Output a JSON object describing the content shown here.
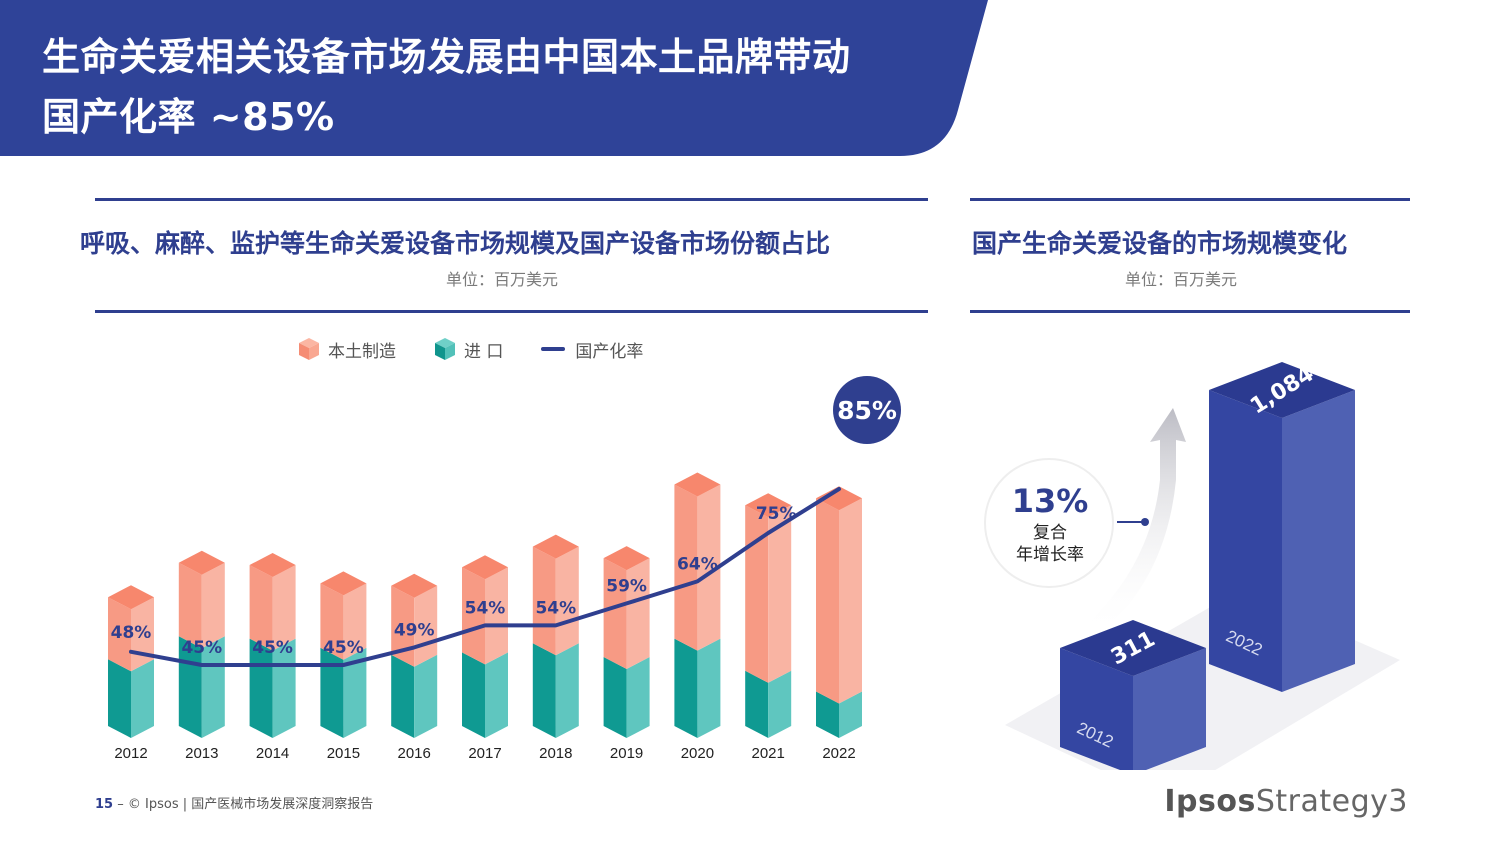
{
  "header": {
    "title_line1": "生命关爱相关设备市场发展由中国本土品牌带动",
    "title_line2": "国产化率 ~85%"
  },
  "left_section": {
    "title": "呼吸、麻醉、监护等生命关爱设备市场规模及国产设备市场份额占比",
    "unit": "单位：百万美元"
  },
  "right_section": {
    "title": "国产生命关爱设备的市场规模变化",
    "unit": "单位：百万美元"
  },
  "footer": {
    "page": "15",
    "text": "© Ipsos | 国产医械市场发展深度洞察报告"
  },
  "logo": {
    "bold": "Ipsos",
    "light": "Strategy3"
  },
  "colors": {
    "navy": "#2f3f8f",
    "local_manufacturing": "#f7917a",
    "import": "#1aa39a",
    "rate_line": "#2f3f8f",
    "bar_3d": "#3547a0"
  },
  "chart_data": [
    {
      "type": "bar",
      "stacked": true,
      "secondary_type": "line",
      "title": "呼吸、麻醉、监护等生命关爱设备市场规模及国产设备市场份额占比",
      "unit": "单位：百万美元",
      "legend": {
        "position": "top",
        "items": [
          "本土制造",
          "进 口",
          "国产化率"
        ]
      },
      "categories": [
        "2012",
        "2013",
        "2014",
        "2015",
        "2016",
        "2017",
        "2018",
        "2019",
        "2020",
        "2021",
        "2022"
      ],
      "series": [
        {
          "name": "本土制造",
          "values": [
            270,
            320,
            320,
            280,
            300,
            370,
            420,
            430,
            670,
            720,
            840
          ]
        },
        {
          "name": "进 口",
          "values": [
            290,
            390,
            380,
            340,
            310,
            320,
            360,
            300,
            380,
            240,
            150
          ]
        }
      ],
      "line_series": {
        "name": "国产化率",
        "values": [
          48,
          45,
          45,
          45,
          49,
          54,
          54,
          59,
          64,
          75,
          85
        ],
        "labels": [
          "48%",
          "45%",
          "45%",
          "45%",
          "49%",
          "54%",
          "54%",
          "59%",
          "64%",
          "75%",
          "85%"
        ]
      },
      "grid": false
    },
    {
      "type": "bar",
      "title": "国产生命关爱设备的市场规模变化",
      "unit": "单位：百万美元",
      "categories": [
        "2012",
        "2022"
      ],
      "values": [
        311,
        1084
      ],
      "value_labels": [
        "311",
        "1,084"
      ],
      "annotation": {
        "value": "13%",
        "label_line1": "复合",
        "label_line2": "年增长率"
      },
      "grid": false
    }
  ]
}
